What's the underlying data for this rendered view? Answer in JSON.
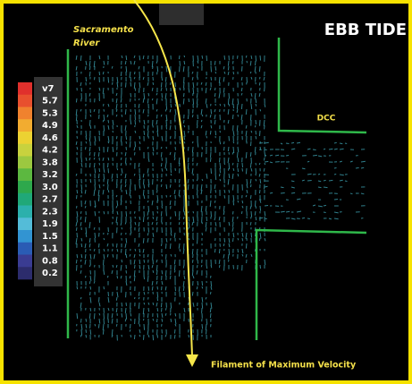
{
  "title": "EBB TIDE",
  "labels": {
    "river": [
      "Sacramento",
      "River"
    ],
    "channel": "DCC",
    "filament": "Filament of Maximum Velocity"
  },
  "legend": [
    {
      "label": "v7",
      "color": "#e0302c"
    },
    {
      "label": "5.7",
      "color": "#e8502e"
    },
    {
      "label": "5.3",
      "color": "#f0822e"
    },
    {
      "label": "4.9",
      "color": "#f2ac30"
    },
    {
      "label": "4.6",
      "color": "#ecd232"
    },
    {
      "label": "4.2",
      "color": "#c8d23e"
    },
    {
      "label": "3.8",
      "color": "#9cc840"
    },
    {
      "label": "3.2",
      "color": "#5cb840"
    },
    {
      "label": "3.0",
      "color": "#2ea84c"
    },
    {
      "label": "2.7",
      "color": "#20a878"
    },
    {
      "label": "2.3",
      "color": "#2cb0ac"
    },
    {
      "label": "1.9",
      "color": "#54bcd8"
    },
    {
      "label": "1.5",
      "color": "#3294d2"
    },
    {
      "label": "1.1",
      "color": "#2a5cb4"
    },
    {
      "label": "0.8",
      "color": "#3a3c92"
    },
    {
      "label": "0.2",
      "color": "#2c2c6c"
    }
  ]
}
